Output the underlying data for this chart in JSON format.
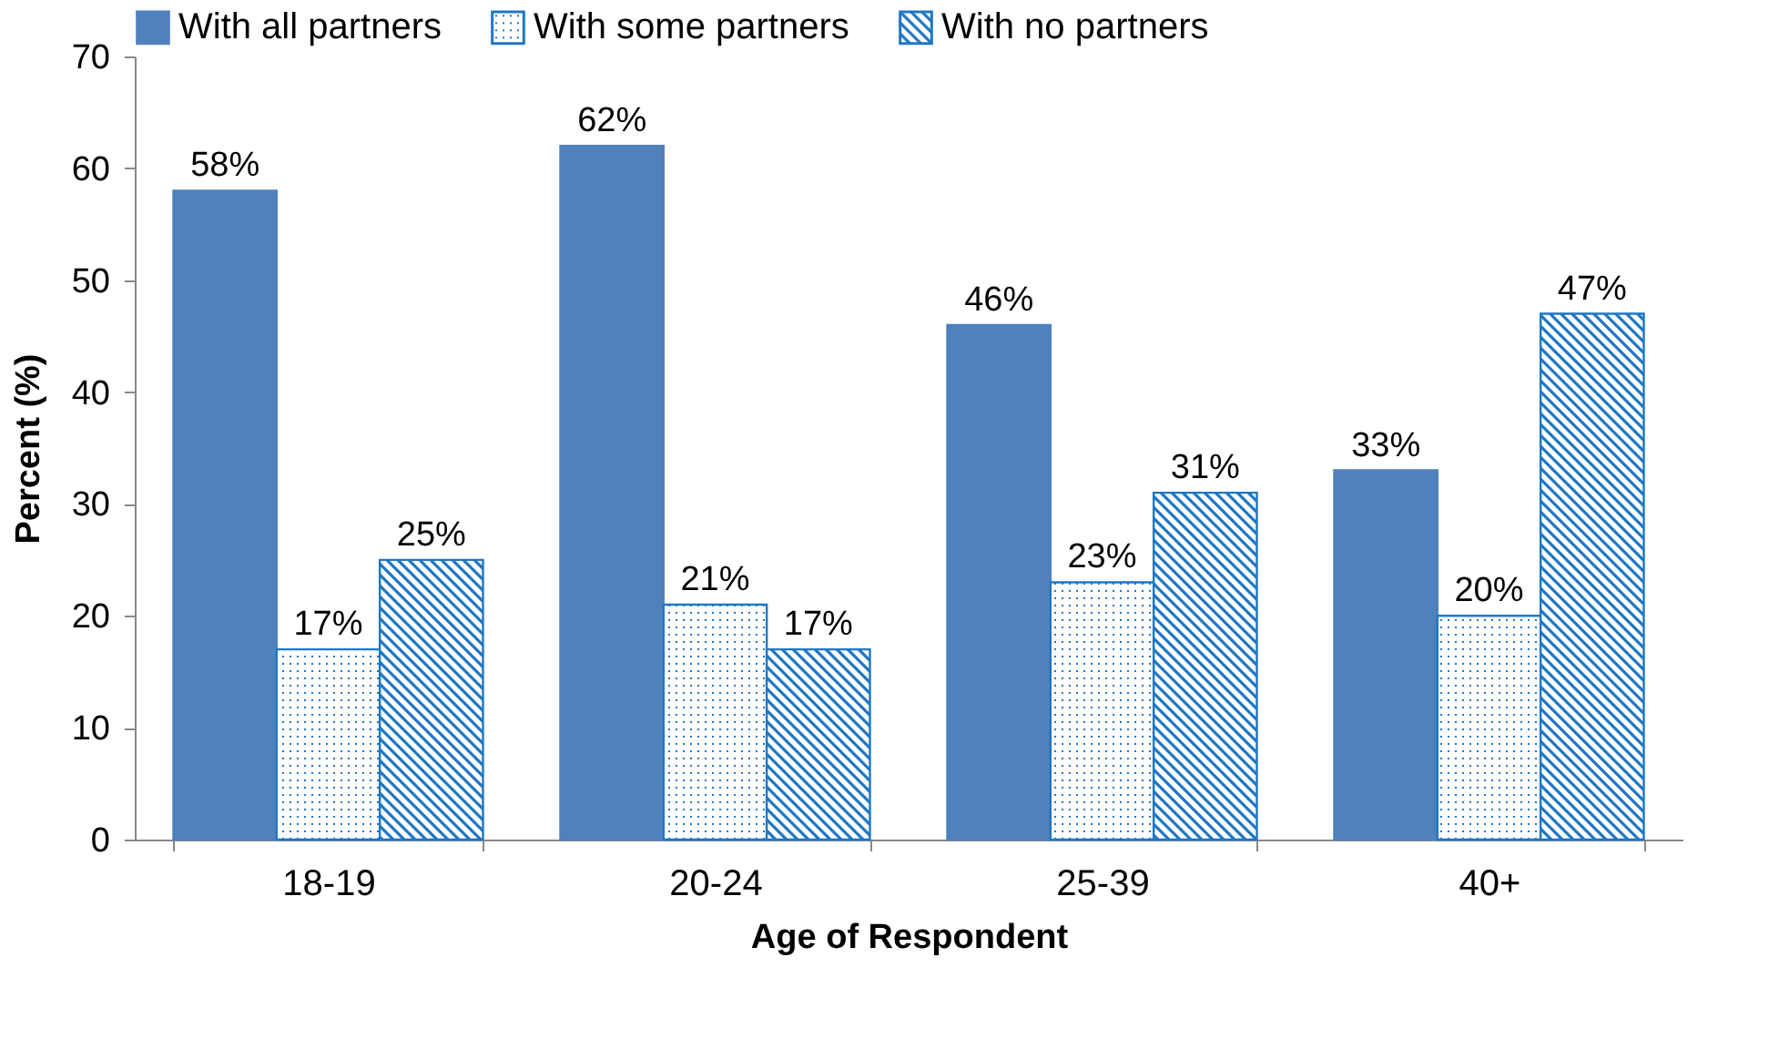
{
  "chart_data": {
    "type": "bar",
    "xlabel": "Age of Respondent",
    "ylabel": "Percent (%)",
    "categories": [
      "18-19",
      "20-24",
      "25-39",
      "40+"
    ],
    "series": [
      {
        "name": "With all partners",
        "color": "#4f81bd",
        "values": [
          58,
          62,
          46,
          33
        ],
        "value_labels": [
          "58%",
          "62%",
          "46%",
          "33%"
        ]
      },
      {
        "name": "With some partners",
        "color": "#1f77c4",
        "values": [
          17,
          21,
          23,
          20
        ],
        "value_labels": [
          "17%",
          "21%",
          "23%",
          "20%"
        ]
      },
      {
        "name": "With no partners",
        "color": "#1f77c4",
        "values": [
          25,
          17,
          31,
          47
        ],
        "value_labels": [
          "25%",
          "17%",
          "31%",
          "47%"
        ]
      }
    ],
    "ylim": [
      0,
      70
    ],
    "yticks": [
      0,
      10,
      20,
      30,
      40,
      50,
      60,
      70
    ],
    "grid": false,
    "legend": "top"
  }
}
